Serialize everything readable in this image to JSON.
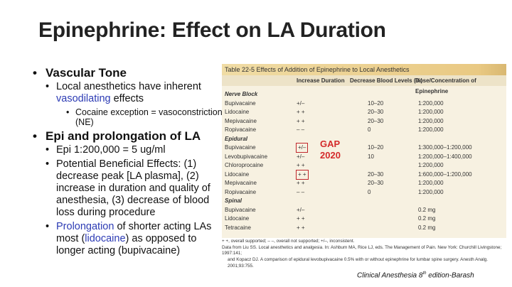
{
  "title": "Epinephrine: Effect on LA Duration",
  "bullets": {
    "b1": "Vascular Tone",
    "b1_1a": "Local anesthetics have inherent",
    "b1_1b": "vasodilating",
    "b1_1c": "effects",
    "b1_1_1": "Cocaine exception = vasoconstriction (NE)",
    "b2": "Epi and prolongation of LA",
    "b2_1": "Epi 1:200,000 = 5 ug/ml",
    "b2_2": "Potential Beneficial Effects: (1) decrease peak [LA plasma], (2) increase in duration and quality of anesthesia, (3) decrease of blood loss during procedure",
    "b2_3a": "Prolongation",
    "b2_3b": " of shorter acting LAs most (",
    "b2_3c": "lidocaine",
    "b2_3d": ") as opposed to longer acting (bupivacaine)"
  },
  "table": {
    "caption": "Table 22-5   Effects of Addition of Epinephrine to Local Anesthetics",
    "headers": [
      "",
      "Increase Duration",
      "Decrease Blood Levels (%)",
      "Dose/Concentration of Epinephrine"
    ],
    "rows": [
      [
        "Nerve Block",
        "",
        "",
        ""
      ],
      [
        "Bupivacaine",
        "+/–",
        "10–20",
        "1:200,000"
      ],
      [
        "Lidocaine",
        "+ +",
        "20–30",
        "1:200,000"
      ],
      [
        "Mepivacaine",
        "+ +",
        "20–30",
        "1:200,000"
      ],
      [
        "Ropivacaine",
        "– –",
        "0",
        "1:200,000"
      ],
      [
        "Epidural",
        "",
        "",
        ""
      ],
      [
        "Bupivacaine",
        "+/–",
        "10–20",
        "1:300,000–1:200,000"
      ],
      [
        "Levobupivacaine",
        "+/–",
        "10",
        "1:200,000–1:400,000"
      ],
      [
        "Chloroprocaine",
        "+ +",
        "",
        "1:200,000"
      ],
      [
        "Lidocaine",
        "+ +",
        "20–30",
        "1:600,000–1:200,000"
      ],
      [
        "Mepivacaine",
        "+ +",
        "20–30",
        "1:200,000"
      ],
      [
        "Ropivacaine",
        "– –",
        "0",
        "1:200,000"
      ],
      [
        "Spinal",
        "",
        "",
        ""
      ],
      [
        "Bupivacaine",
        "+/–",
        "",
        "0.2 mg"
      ],
      [
        "Lidocaine",
        "+ +",
        "",
        "0.2 mg"
      ],
      [
        "Tetracaine",
        "+ +",
        "",
        "0.2 mg"
      ]
    ],
    "footnotes": [
      "+ +, overall supported; – –, overall not supported; +/–, inconsistent.",
      "Data from Liu SS. Local anesthetics and analgesia. In: Ashburn MA, Rice LJ, eds. The Management of Pain. New York: Churchill Livingstone; 1997:141;",
      "and Kopacz DJ. A comparison of epidural levobupivacaine 0.5% with or without epinephrine for lumbar spine surgery. Anesth Analg. 2001;93:755."
    ]
  },
  "annotation": {
    "line1": "GAP",
    "line2": "2020"
  },
  "citation": {
    "text": "Clinical Anesthesia 8",
    "sup": "th",
    "rest": " edition-Barash"
  }
}
